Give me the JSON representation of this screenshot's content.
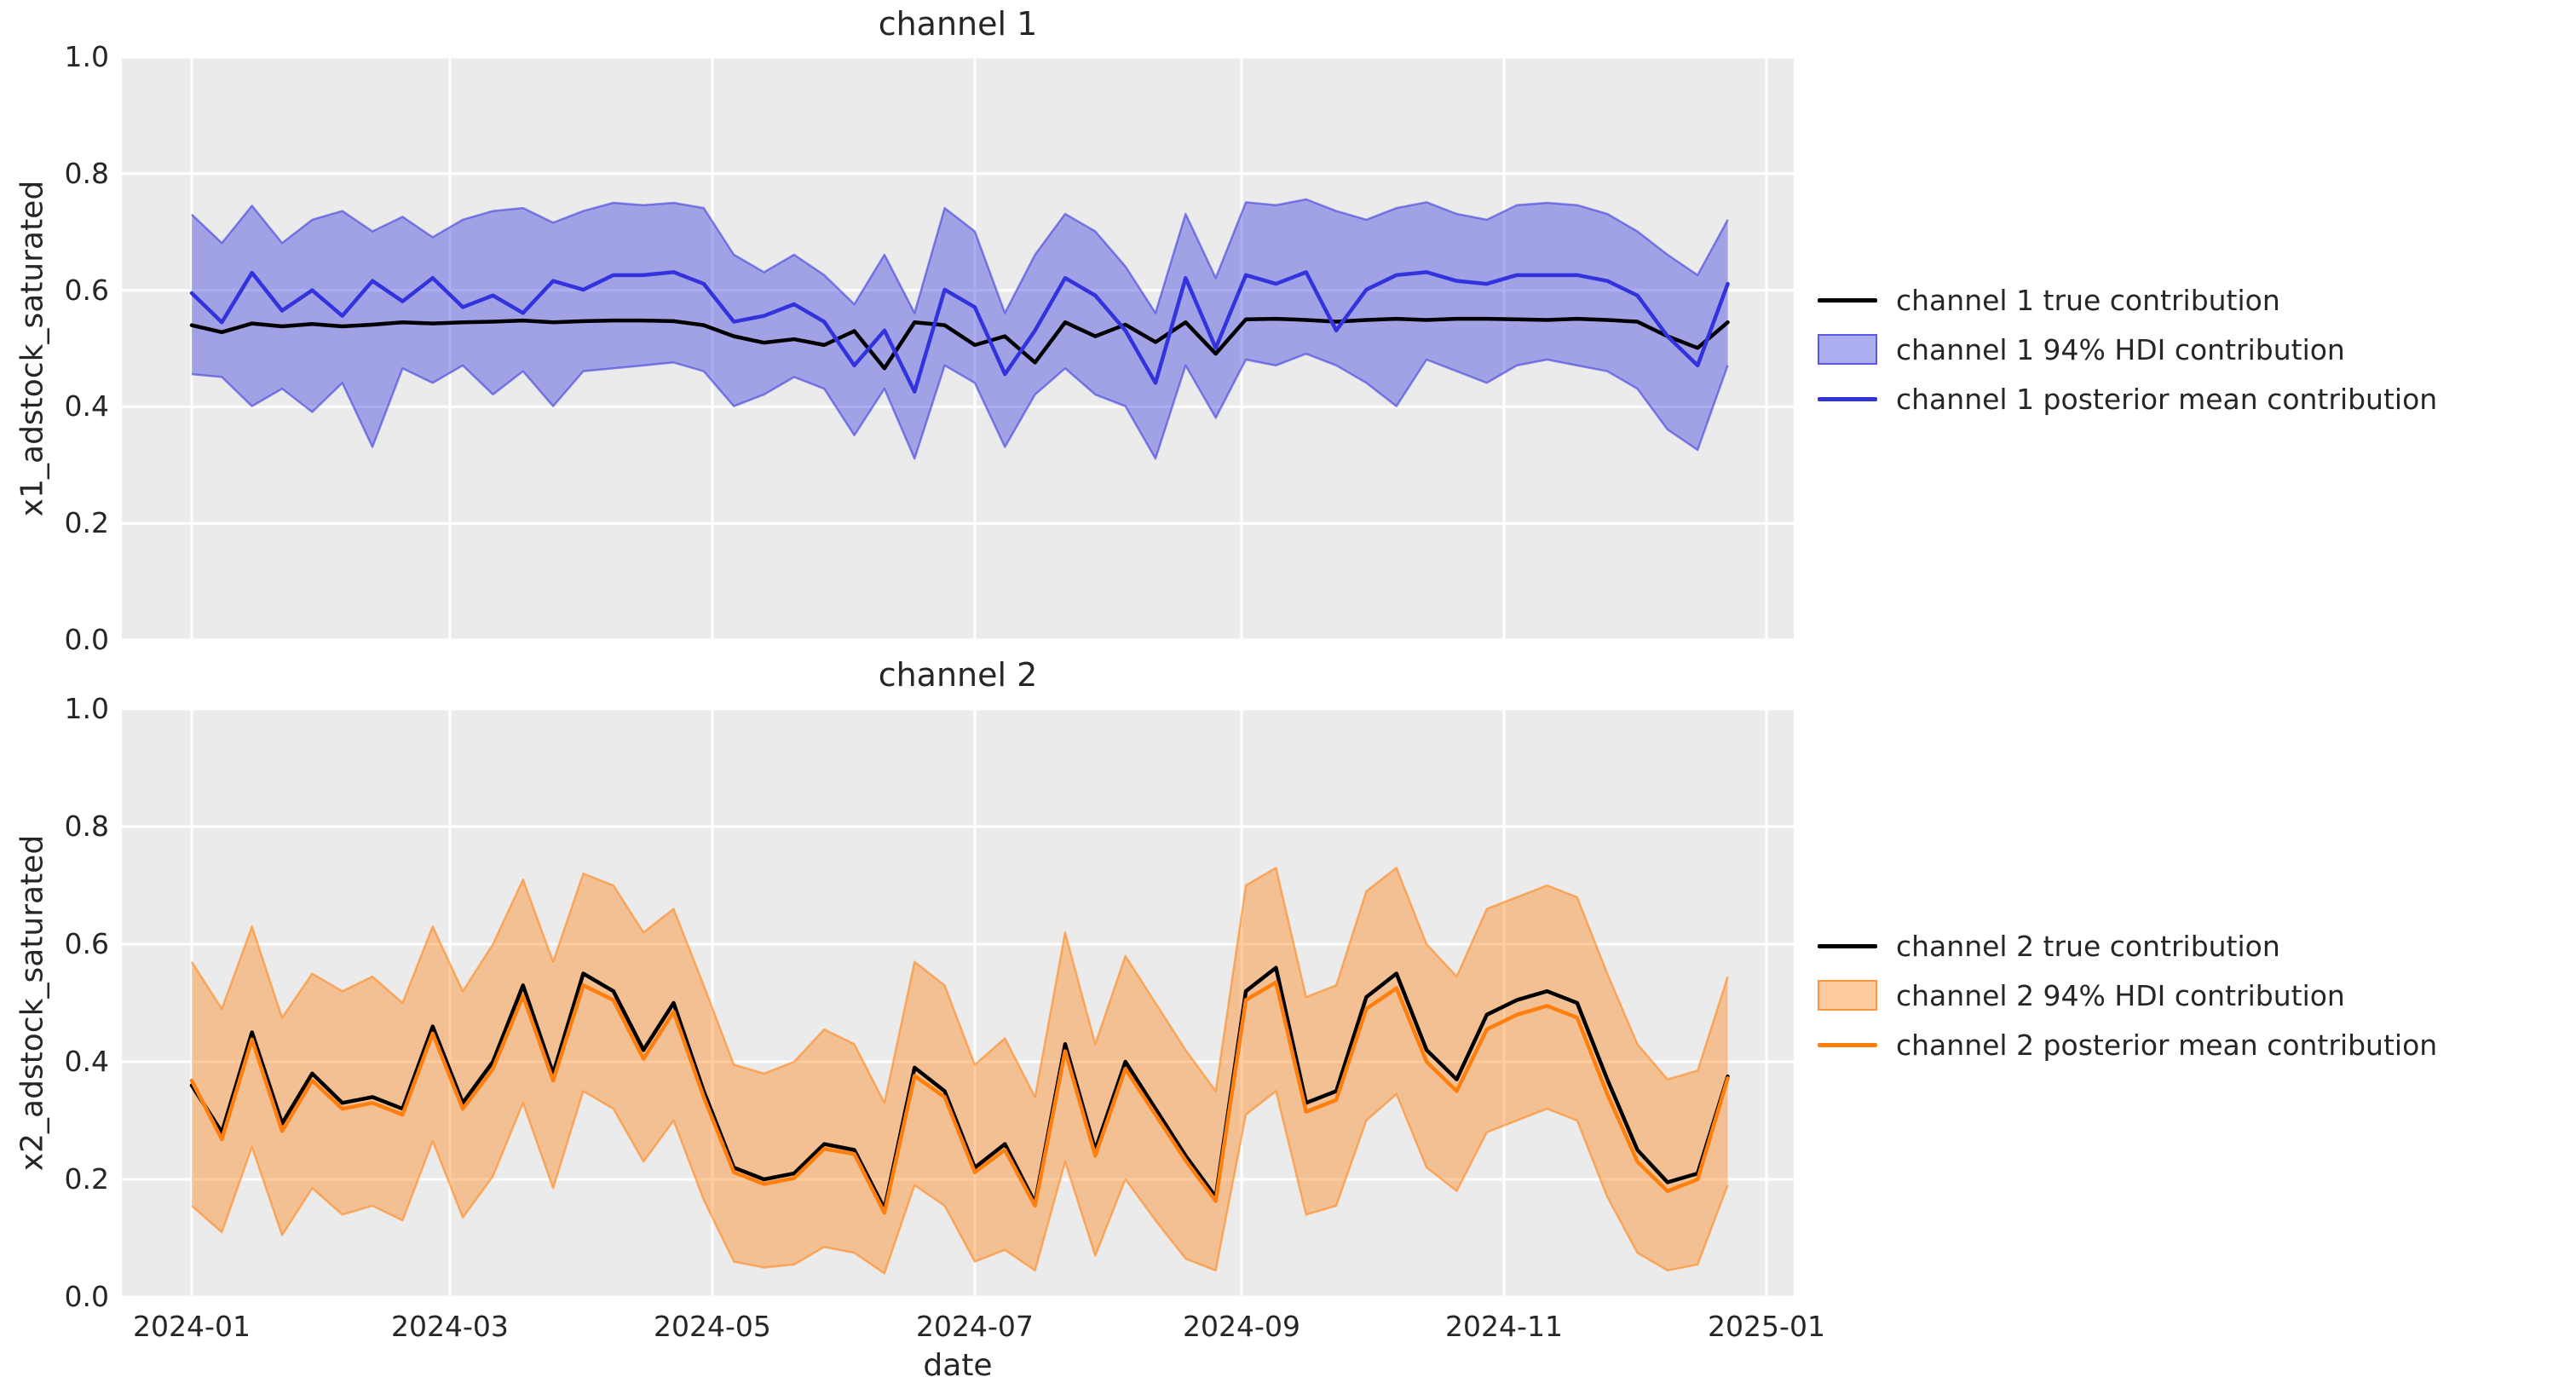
{
  "figure": {
    "background_color": "#ffffff",
    "plot_background_color": "#ebebeb",
    "gridline_color": "#ffffff",
    "text_color": "#262626",
    "channel1_color": "#3333dd",
    "channel2_color": "#ff7f0e",
    "true_line_color": "#000000"
  },
  "chart_data": [
    {
      "type": "line",
      "title": "channel 1",
      "xlabel": "",
      "ylabel": "x1_adstock_saturated",
      "ylim": [
        0.0,
        1.0
      ],
      "grid": true,
      "legend_position": "right of axes",
      "y_tick_labels": [
        "1.0",
        "0.8",
        "0.6",
        "0.4",
        "0.2",
        "0.0"
      ],
      "x_tick_labels": [],
      "x_tick_day_offsets": [
        0,
        60,
        121,
        182,
        244,
        305,
        366
      ],
      "x": [
        "2024-01-01",
        "2024-01-08",
        "2024-01-15",
        "2024-01-22",
        "2024-01-29",
        "2024-02-05",
        "2024-02-12",
        "2024-02-19",
        "2024-02-26",
        "2024-03-04",
        "2024-03-11",
        "2024-03-18",
        "2024-03-25",
        "2024-04-01",
        "2024-04-08",
        "2024-04-15",
        "2024-04-22",
        "2024-04-29",
        "2024-05-06",
        "2024-05-13",
        "2024-05-20",
        "2024-05-27",
        "2024-06-03",
        "2024-06-10",
        "2024-06-17",
        "2024-06-24",
        "2024-07-01",
        "2024-07-08",
        "2024-07-15",
        "2024-07-22",
        "2024-07-29",
        "2024-08-05",
        "2024-08-12",
        "2024-08-19",
        "2024-08-26",
        "2024-09-02",
        "2024-09-09",
        "2024-09-16",
        "2024-09-23",
        "2024-09-30",
        "2024-10-07",
        "2024-10-14",
        "2024-10-21",
        "2024-10-28",
        "2024-11-04",
        "2024-11-11",
        "2024-11-18",
        "2024-11-25",
        "2024-12-02",
        "2024-12-09",
        "2024-12-16",
        "2024-12-23"
      ],
      "series": [
        {
          "name": "channel 1 true contribution",
          "type": "line",
          "color": "#000000",
          "values": [
            0.54,
            0.528,
            0.543,
            0.538,
            0.542,
            0.538,
            0.541,
            0.545,
            0.543,
            0.545,
            0.546,
            0.548,
            0.545,
            0.547,
            0.548,
            0.548,
            0.547,
            0.54,
            0.521,
            0.51,
            0.516,
            0.506,
            0.53,
            0.466,
            0.545,
            0.54,
            0.506,
            0.521,
            0.476,
            0.545,
            0.521,
            0.541,
            0.511,
            0.545,
            0.491,
            0.55,
            0.551,
            0.549,
            0.546,
            0.549,
            0.551,
            0.549,
            0.551,
            0.551,
            0.55,
            0.549,
            0.551,
            0.549,
            0.546,
            0.521,
            0.501,
            0.545
          ]
        },
        {
          "name": "channel 1 94% HDI contribution",
          "type": "band",
          "color": "#3333dd",
          "fill_opacity": 0.4,
          "lower": [
            0.456,
            0.451,
            0.401,
            0.431,
            0.391,
            0.441,
            0.331,
            0.466,
            0.441,
            0.471,
            0.421,
            0.461,
            0.401,
            0.461,
            0.466,
            0.471,
            0.476,
            0.461,
            0.401,
            0.421,
            0.451,
            0.431,
            0.351,
            0.431,
            0.311,
            0.471,
            0.441,
            0.331,
            0.421,
            0.466,
            0.421,
            0.401,
            0.311,
            0.471,
            0.381,
            0.481,
            0.471,
            0.491,
            0.471,
            0.441,
            0.401,
            0.481,
            0.461,
            0.441,
            0.471,
            0.481,
            0.471,
            0.461,
            0.431,
            0.361,
            0.326,
            0.471
          ],
          "upper": [
            0.73,
            0.681,
            0.745,
            0.681,
            0.721,
            0.736,
            0.701,
            0.726,
            0.691,
            0.721,
            0.736,
            0.741,
            0.716,
            0.736,
            0.75,
            0.746,
            0.75,
            0.741,
            0.661,
            0.631,
            0.661,
            0.626,
            0.576,
            0.661,
            0.561,
            0.741,
            0.701,
            0.561,
            0.661,
            0.731,
            0.701,
            0.641,
            0.561,
            0.731,
            0.621,
            0.751,
            0.746,
            0.756,
            0.736,
            0.721,
            0.741,
            0.751,
            0.731,
            0.721,
            0.746,
            0.75,
            0.746,
            0.731,
            0.701,
            0.661,
            0.626,
            0.721
          ]
        },
        {
          "name": "channel 1 posterior mean contribution",
          "type": "line",
          "color": "#3333dd",
          "values": [
            0.595,
            0.545,
            0.63,
            0.565,
            0.6,
            0.556,
            0.616,
            0.581,
            0.621,
            0.571,
            0.591,
            0.561,
            0.616,
            0.601,
            0.626,
            0.626,
            0.631,
            0.611,
            0.546,
            0.556,
            0.576,
            0.546,
            0.471,
            0.531,
            0.426,
            0.601,
            0.571,
            0.456,
            0.531,
            0.621,
            0.591,
            0.531,
            0.441,
            0.621,
            0.501,
            0.626,
            0.611,
            0.631,
            0.531,
            0.601,
            0.626,
            0.631,
            0.616,
            0.611,
            0.626,
            0.626,
            0.626,
            0.616,
            0.591,
            0.521,
            0.471,
            0.611
          ]
        }
      ]
    },
    {
      "type": "line",
      "title": "channel 2",
      "xlabel": "date",
      "ylabel": "x2_adstock_saturated",
      "ylim": [
        0.0,
        1.0
      ],
      "grid": true,
      "legend_position": "right of axes",
      "y_tick_labels": [
        "1.0",
        "0.8",
        "0.6",
        "0.4",
        "0.2",
        "0.0"
      ],
      "x_tick_labels": [
        "2024-01",
        "2024-03",
        "2024-05",
        "2024-07",
        "2024-09",
        "2024-11",
        "2025-01"
      ],
      "x_tick_day_offsets": [
        0,
        60,
        121,
        182,
        244,
        305,
        366
      ],
      "x": [
        "2024-01-01",
        "2024-01-08",
        "2024-01-15",
        "2024-01-22",
        "2024-01-29",
        "2024-02-05",
        "2024-02-12",
        "2024-02-19",
        "2024-02-26",
        "2024-03-04",
        "2024-03-11",
        "2024-03-18",
        "2024-03-25",
        "2024-04-01",
        "2024-04-08",
        "2024-04-15",
        "2024-04-22",
        "2024-04-29",
        "2024-05-06",
        "2024-05-13",
        "2024-05-20",
        "2024-05-27",
        "2024-06-03",
        "2024-06-10",
        "2024-06-17",
        "2024-06-24",
        "2024-07-01",
        "2024-07-08",
        "2024-07-15",
        "2024-07-22",
        "2024-07-29",
        "2024-08-05",
        "2024-08-12",
        "2024-08-19",
        "2024-08-26",
        "2024-09-02",
        "2024-09-09",
        "2024-09-16",
        "2024-09-23",
        "2024-09-30",
        "2024-10-07",
        "2024-10-14",
        "2024-10-21",
        "2024-10-28",
        "2024-11-04",
        "2024-11-11",
        "2024-11-18",
        "2024-11-25",
        "2024-12-02",
        "2024-12-09",
        "2024-12-16",
        "2024-12-23"
      ],
      "series": [
        {
          "name": "channel 2 true contribution",
          "type": "line",
          "color": "#000000",
          "values": [
            0.36,
            0.28,
            0.45,
            0.295,
            0.38,
            0.33,
            0.34,
            0.32,
            0.46,
            0.33,
            0.4,
            0.53,
            0.38,
            0.55,
            0.52,
            0.42,
            0.5,
            0.35,
            0.22,
            0.2,
            0.21,
            0.26,
            0.25,
            0.15,
            0.39,
            0.35,
            0.22,
            0.26,
            0.16,
            0.43,
            0.25,
            0.4,
            0.32,
            0.24,
            0.17,
            0.52,
            0.56,
            0.33,
            0.35,
            0.51,
            0.55,
            0.42,
            0.37,
            0.48,
            0.505,
            0.52,
            0.5,
            0.37,
            0.25,
            0.195,
            0.21,
            0.375
          ]
        },
        {
          "name": "channel 2 94% HDI contribution",
          "type": "band",
          "color": "#ff7f0e",
          "fill_opacity": 0.4,
          "lower": [
            0.155,
            0.11,
            0.255,
            0.105,
            0.185,
            0.14,
            0.155,
            0.13,
            0.265,
            0.135,
            0.205,
            0.33,
            0.185,
            0.35,
            0.32,
            0.23,
            0.3,
            0.165,
            0.06,
            0.05,
            0.055,
            0.085,
            0.075,
            0.04,
            0.19,
            0.155,
            0.06,
            0.08,
            0.045,
            0.23,
            0.07,
            0.2,
            0.13,
            0.065,
            0.045,
            0.31,
            0.35,
            0.14,
            0.155,
            0.3,
            0.345,
            0.22,
            0.18,
            0.28,
            0.3,
            0.32,
            0.3,
            0.17,
            0.075,
            0.045,
            0.055,
            0.19
          ],
          "upper": [
            0.57,
            0.49,
            0.63,
            0.475,
            0.55,
            0.52,
            0.545,
            0.5,
            0.63,
            0.52,
            0.6,
            0.71,
            0.57,
            0.72,
            0.7,
            0.62,
            0.66,
            0.53,
            0.395,
            0.38,
            0.4,
            0.455,
            0.43,
            0.33,
            0.57,
            0.53,
            0.395,
            0.44,
            0.34,
            0.62,
            0.43,
            0.58,
            0.5,
            0.42,
            0.35,
            0.7,
            0.73,
            0.51,
            0.53,
            0.69,
            0.73,
            0.6,
            0.545,
            0.66,
            0.68,
            0.7,
            0.68,
            0.55,
            0.43,
            0.37,
            0.385,
            0.545
          ]
        },
        {
          "name": "channel 2 posterior mean contribution",
          "type": "line",
          "color": "#ff7f0e",
          "values": [
            0.368,
            0.268,
            0.438,
            0.282,
            0.368,
            0.32,
            0.33,
            0.31,
            0.448,
            0.32,
            0.388,
            0.512,
            0.368,
            0.53,
            0.505,
            0.405,
            0.485,
            0.34,
            0.212,
            0.192,
            0.202,
            0.252,
            0.243,
            0.143,
            0.376,
            0.34,
            0.212,
            0.25,
            0.155,
            0.418,
            0.24,
            0.388,
            0.31,
            0.232,
            0.163,
            0.505,
            0.535,
            0.315,
            0.335,
            0.49,
            0.525,
            0.4,
            0.35,
            0.455,
            0.48,
            0.495,
            0.475,
            0.345,
            0.23,
            0.18,
            0.2,
            0.372
          ]
        }
      ]
    }
  ]
}
